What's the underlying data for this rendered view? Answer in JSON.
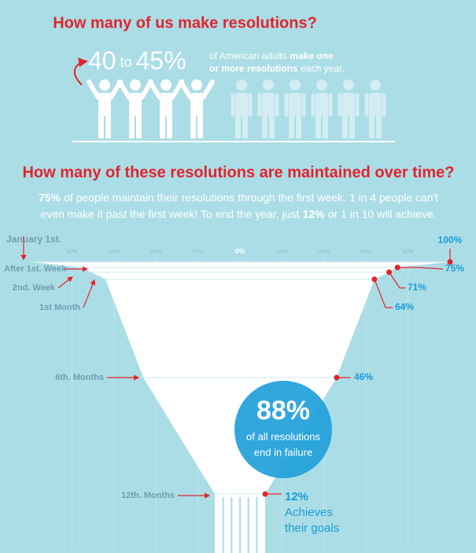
{
  "header": {
    "title": "How many of us make resolutions?",
    "stat": [
      "40",
      "to",
      "45%"
    ],
    "note_lines": [
      [
        {
          "text": "of American adults",
          "bold": false
        },
        {
          "text": "make one",
          "bold": true
        }
      ],
      [
        {
          "text": "or more resolutions",
          "bold": true
        },
        {
          "text": "each year.",
          "bold": false
        }
      ]
    ]
  },
  "subtitle_lines": [
    [
      {
        "text": "75%",
        "bold": true
      },
      {
        "text": "of people maintain their resolutions through the first week. 1 in 4 people can't",
        "bold": false
      }
    ],
    [
      {
        "text": "even make it past the first week! To end the year, just",
        "bold": false
      },
      {
        "text": "12%",
        "bold": true
      },
      {
        "text": "or 1 in 10 will achieve.",
        "bold": false
      }
    ]
  ],
  "chart_data": {
    "type": "funnel",
    "title": "How many of these resolutions are maintained over time?",
    "categories": [
      "January 1st.",
      "After 1st. Week",
      "2nd. Week",
      "1st Month",
      "6th. Months",
      "12th. Months"
    ],
    "values": [
      100,
      75,
      71,
      64,
      46,
      12
    ],
    "value_labels": [
      "100%",
      "75%",
      "71%",
      "64%",
      "46%",
      "12%"
    ],
    "last_note_lines": [
      "Achieves",
      "their goals"
    ],
    "xlim": [
      -100,
      100
    ],
    "xticks": [
      {
        "value": -80,
        "label": "80%"
      },
      {
        "value": -60,
        "label": "60%"
      },
      {
        "value": -40,
        "label": "40%"
      },
      {
        "value": -20,
        "label": "20%"
      },
      {
        "value": 0,
        "label": "0%"
      },
      {
        "value": 20,
        "label": "20%"
      },
      {
        "value": 40,
        "label": "40%"
      },
      {
        "value": 60,
        "label": "60%"
      },
      {
        "value": 80,
        "label": "80%"
      }
    ],
    "color": "#ffffff",
    "marker_color": "#e3232c"
  },
  "bubble": {
    "value": "88%",
    "lines": [
      "of all resolutions",
      "end in failure"
    ]
  }
}
